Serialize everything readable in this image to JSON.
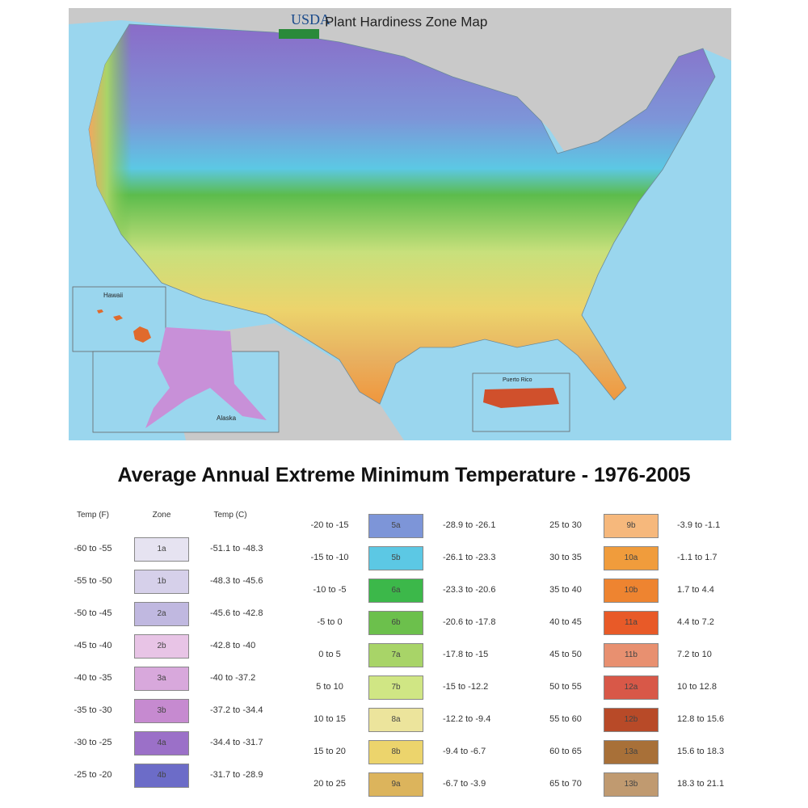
{
  "map": {
    "logo": "USDA",
    "title": "Plant Hardiness Zone Map",
    "insets": [
      "Hawaii",
      "Alaska",
      "Puerto Rico"
    ]
  },
  "legend": {
    "title": "Average Annual Extreme Minimum Temperature - 1976-2005",
    "headers": [
      "Temp (F)",
      "Zone",
      "Temp (C)"
    ],
    "zones": [
      {
        "f": "-60 to -55",
        "zone": "1a",
        "c": "-51.1 to -48.3",
        "color": "#e6e3f1"
      },
      {
        "f": "-55 to -50",
        "zone": "1b",
        "c": "-48.3 to -45.6",
        "color": "#d6d0ea"
      },
      {
        "f": "-50 to -45",
        "zone": "2a",
        "c": "-45.6 to -42.8",
        "color": "#c0b8e0"
      },
      {
        "f": "-45 to -40",
        "zone": "2b",
        "c": "-42.8 to -40",
        "color": "#e8c4e6"
      },
      {
        "f": "-40 to -35",
        "zone": "3a",
        "c": "-40 to -37.2",
        "color": "#d8a8dc"
      },
      {
        "f": "-35 to -30",
        "zone": "3b",
        "c": "-37.2 to -34.4",
        "color": "#c68ad0"
      },
      {
        "f": "-30 to -25",
        "zone": "4a",
        "c": "-34.4 to -31.7",
        "color": "#9b70c8"
      },
      {
        "f": "-25 to -20",
        "zone": "4b",
        "c": "-31.7 to -28.9",
        "color": "#6c6cc8"
      },
      {
        "f": "-20 to -15",
        "zone": "5a",
        "c": "-28.9 to -26.1",
        "color": "#7d95d8"
      },
      {
        "f": "-15 to -10",
        "zone": "5b",
        "c": "-26.1 to -23.3",
        "color": "#5cc8e4"
      },
      {
        "f": "-10 to -5",
        "zone": "6a",
        "c": "-23.3 to -20.6",
        "color": "#3cb84a"
      },
      {
        "f": "-5 to 0",
        "zone": "6b",
        "c": "-20.6 to -17.8",
        "color": "#6cc04c"
      },
      {
        "f": "0 to 5",
        "zone": "7a",
        "c": "-17.8 to -15",
        "color": "#a8d468"
      },
      {
        "f": "5 to 10",
        "zone": "7b",
        "c": "-15 to -12.2",
        "color": "#d0e684"
      },
      {
        "f": "10 to 15",
        "zone": "8a",
        "c": "-12.2 to -9.4",
        "color": "#ece49c"
      },
      {
        "f": "15 to 20",
        "zone": "8b",
        "c": "-9.4 to -6.7",
        "color": "#ecd46c"
      },
      {
        "f": "20 to 25",
        "zone": "9a",
        "c": "-6.7 to -3.9",
        "color": "#dcb45c"
      },
      {
        "f": "25 to 30",
        "zone": "9b",
        "c": "-3.9 to -1.1",
        "color": "#f6b87c"
      },
      {
        "f": "30 to 35",
        "zone": "10a",
        "c": "-1.1 to 1.7",
        "color": "#f09c3c"
      },
      {
        "f": "35 to 40",
        "zone": "10b",
        "c": "1.7 to 4.4",
        "color": "#ee8430"
      },
      {
        "f": "40 to 45",
        "zone": "11a",
        "c": "4.4 to 7.2",
        "color": "#e85a28"
      },
      {
        "f": "45 to 50",
        "zone": "11b",
        "c": "7.2 to 10",
        "color": "#e89070"
      },
      {
        "f": "50 to 55",
        "zone": "12a",
        "c": "10 to 12.8",
        "color": "#d85848"
      },
      {
        "f": "55 to 60",
        "zone": "12b",
        "c": "12.8 to 15.6",
        "color": "#b84a28"
      },
      {
        "f": "60 to 65",
        "zone": "13a",
        "c": "15.6 to 18.3",
        "color": "#a87038"
      },
      {
        "f": "65 to 70",
        "zone": "13b",
        "c": "18.3 to 21.1",
        "color": "#c09a70"
      }
    ]
  }
}
